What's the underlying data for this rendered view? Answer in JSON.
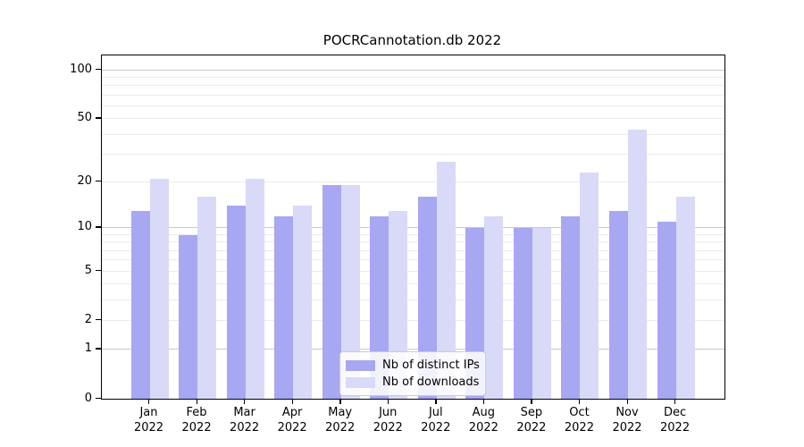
{
  "title": "POCRCannotation.db 2022",
  "legend": {
    "items": [
      {
        "label": "Nb of distinct IPs"
      },
      {
        "label": "Nb of downloads"
      }
    ]
  },
  "chart_data": {
    "type": "bar",
    "title": "POCRCannotation.db 2022",
    "categories": [
      "Jan",
      "Feb",
      "Mar",
      "Apr",
      "May",
      "Jun",
      "Jul",
      "Aug",
      "Sep",
      "Oct",
      "Nov",
      "Dec"
    ],
    "x_year_label": "2022",
    "series": [
      {
        "name": "Nb of distinct IPs",
        "color": "#a7a7f2",
        "values": [
          13,
          9,
          14,
          12,
          19,
          12,
          16,
          10,
          10,
          12,
          13,
          11
        ]
      },
      {
        "name": "Nb of downloads",
        "color": "#d9d9f8",
        "values": [
          21,
          16,
          21,
          14,
          19,
          13,
          27,
          12,
          10,
          23,
          43,
          16
        ]
      }
    ],
    "yscale": "log1p",
    "ylim": [
      0,
      123
    ],
    "yticks": [
      100,
      50,
      20,
      10,
      5,
      2,
      1,
      0
    ],
    "gridlines_major": [
      1,
      10,
      100
    ],
    "gridlines_minor": [
      2,
      3,
      4,
      5,
      6,
      7,
      8,
      9,
      20,
      30,
      40,
      50,
      60,
      70,
      80,
      90
    ],
    "grid": true,
    "legend_position": "lower center",
    "colors": {
      "axis": "#000000",
      "grid_major": "#c9c9c9",
      "grid_minor": "#ebebeb"
    }
  }
}
